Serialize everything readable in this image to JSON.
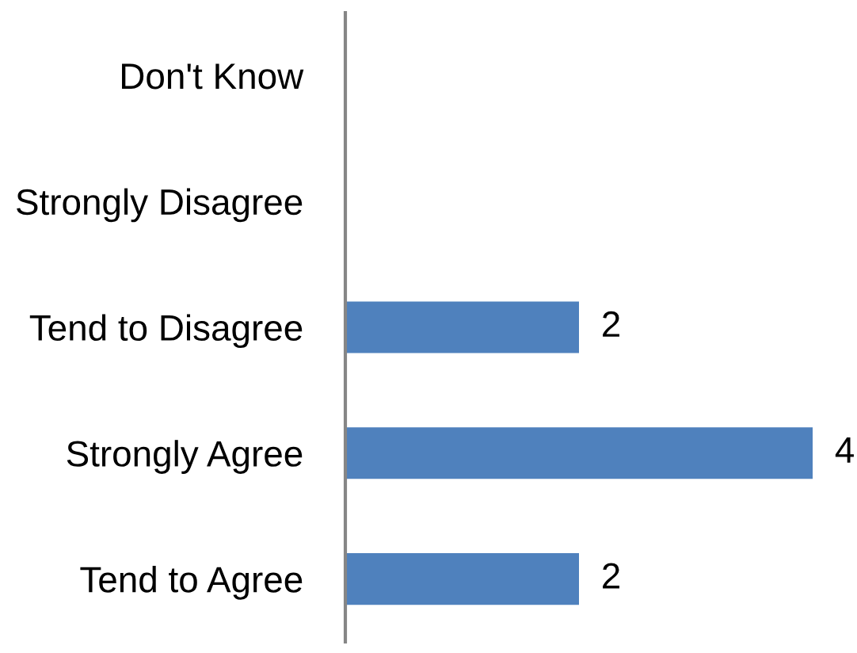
{
  "chart_data": {
    "type": "bar",
    "orientation": "horizontal",
    "categories": [
      "Don't Know",
      "Strongly Disagree",
      "Tend to Disagree",
      "Strongly Agree",
      "Tend to Agree"
    ],
    "values": [
      null,
      null,
      2,
      4,
      2
    ],
    "color": "#4f81bd",
    "data_labels": true,
    "tick_labels": "y"
  }
}
